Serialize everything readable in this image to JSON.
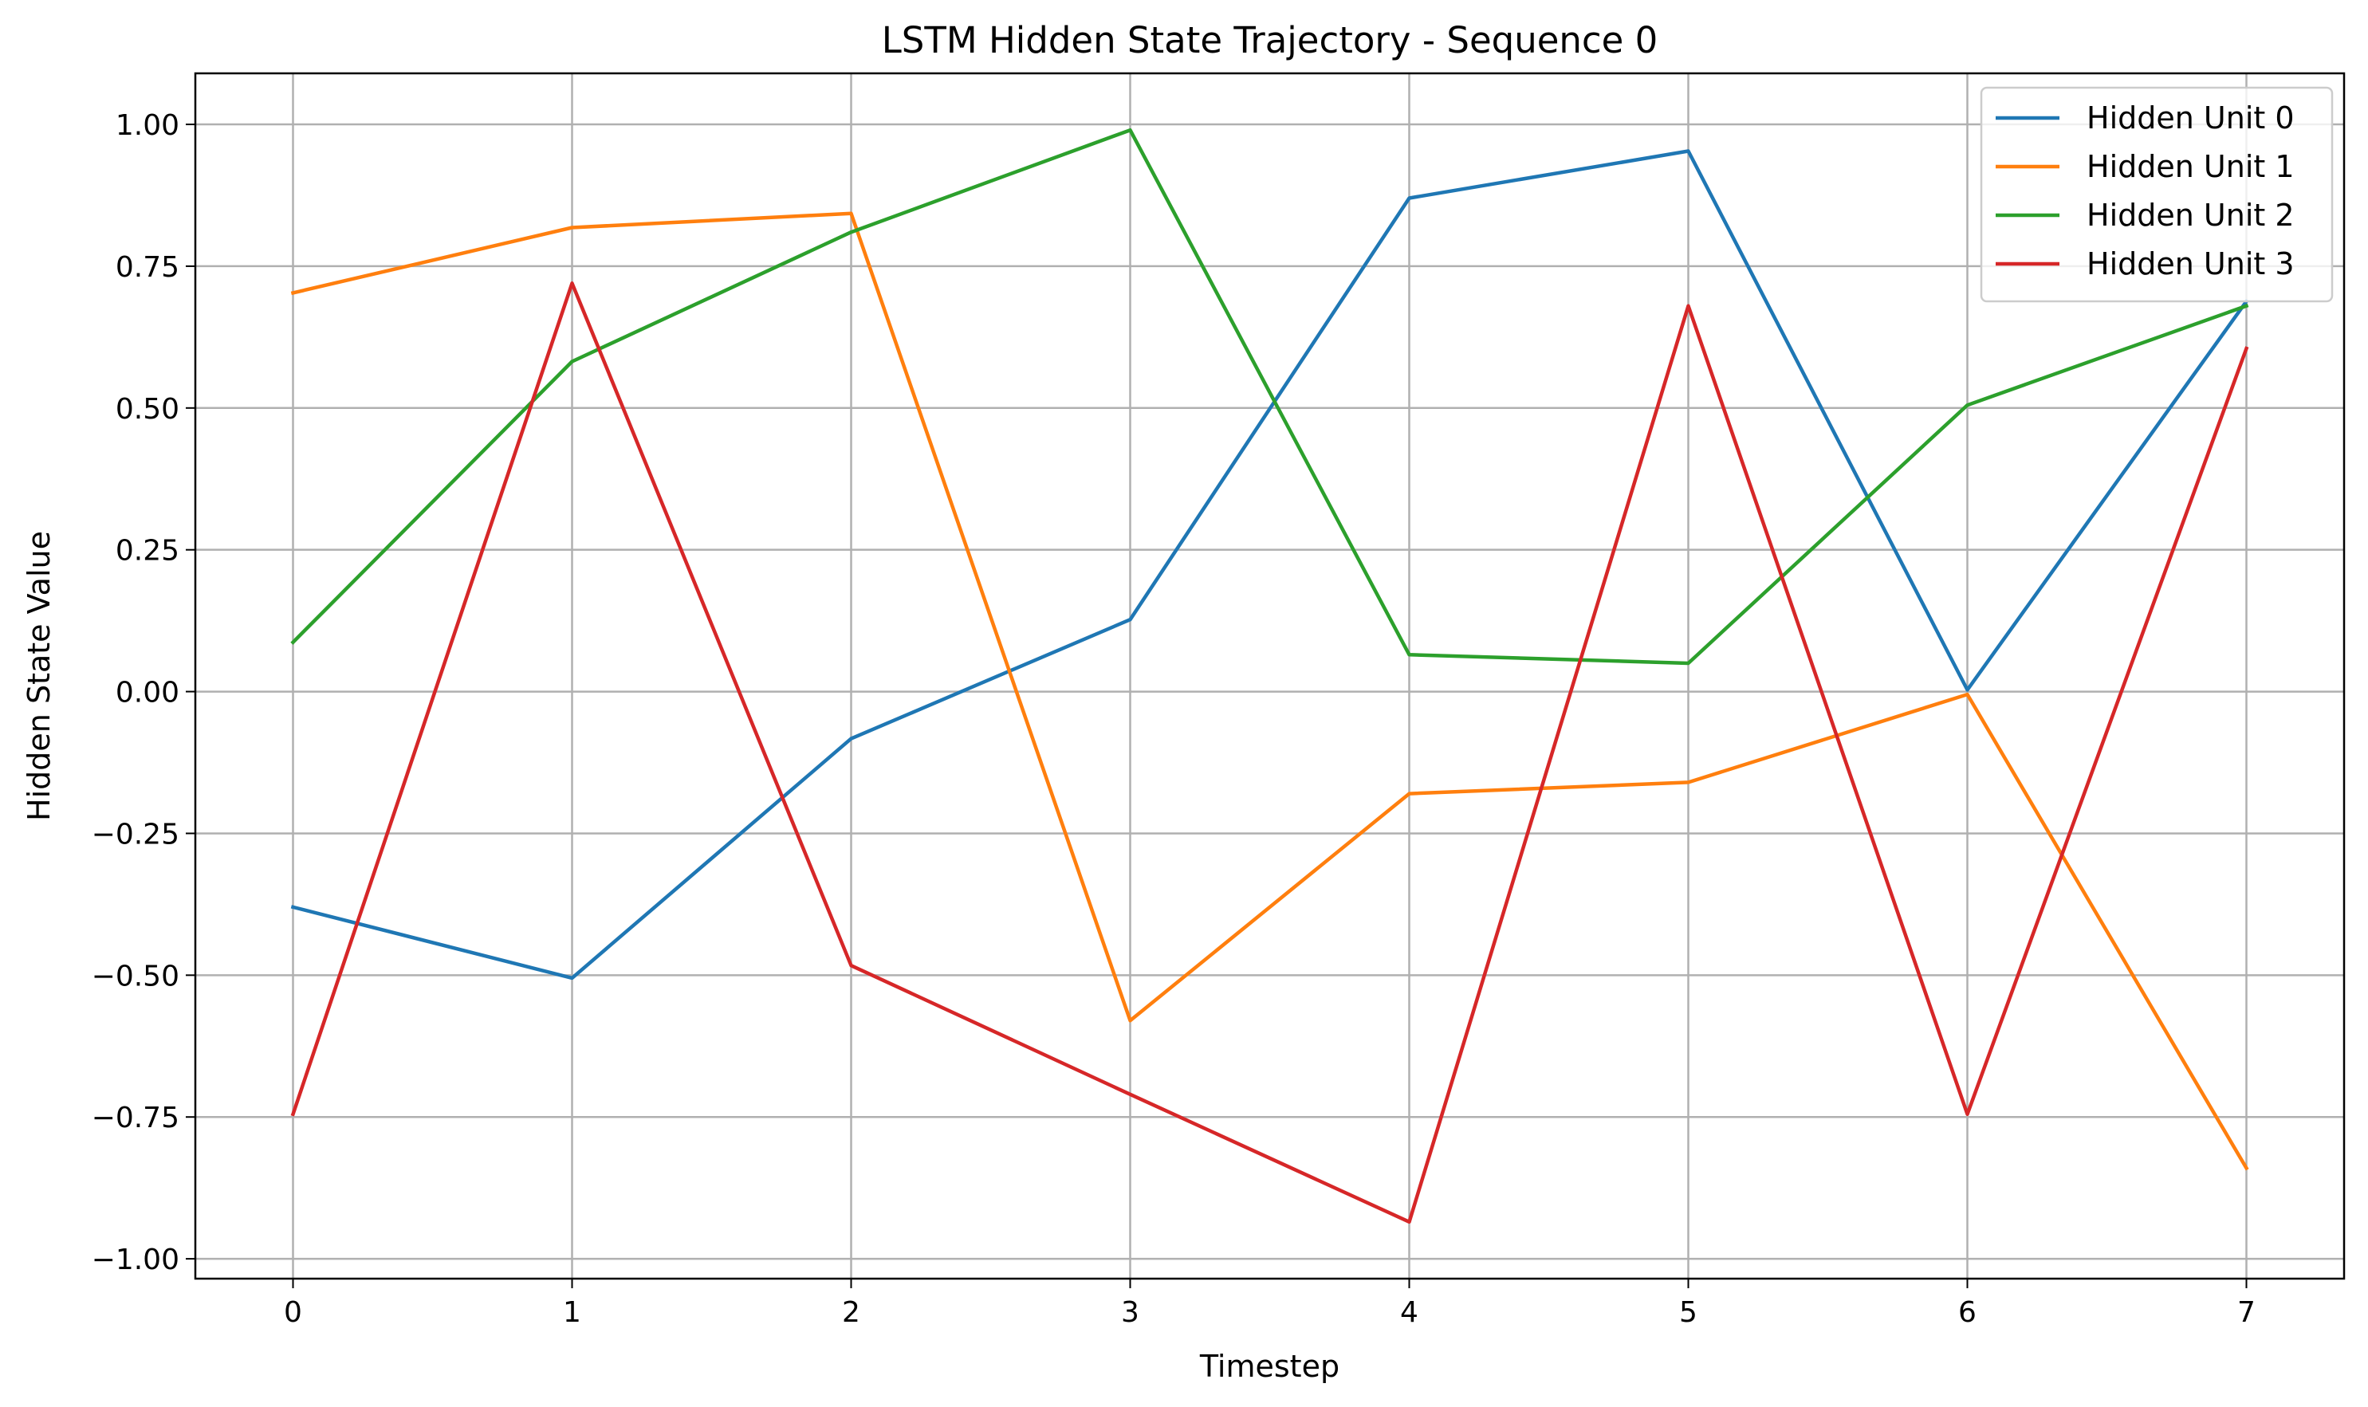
{
  "chart_data": {
    "type": "line",
    "title": "LSTM Hidden State Trajectory - Sequence 0",
    "xlabel": "Timestep",
    "ylabel": "Hidden State Value",
    "x": [
      0,
      1,
      2,
      3,
      4,
      5,
      6,
      7
    ],
    "xlim": [
      -0.35,
      7.35
    ],
    "ylim": [
      -1.035,
      1.09
    ],
    "xticks": [
      "0",
      "1",
      "2",
      "3",
      "4",
      "5",
      "6",
      "7"
    ],
    "yticks": [
      {
        "value": 1.0,
        "label": "1.00"
      },
      {
        "value": 0.75,
        "label": "0.75"
      },
      {
        "value": 0.5,
        "label": "0.50"
      },
      {
        "value": 0.25,
        "label": "0.25"
      },
      {
        "value": 0.0,
        "label": "0.00"
      },
      {
        "value": -0.25,
        "label": "−0.25"
      },
      {
        "value": -0.5,
        "label": "−0.50"
      },
      {
        "value": -0.75,
        "label": "−0.75"
      },
      {
        "value": -1.0,
        "label": "−1.00"
      }
    ],
    "grid": true,
    "legend_position": "top-right",
    "series": [
      {
        "name": "Hidden Unit 0",
        "color": "#1f77b4",
        "values": [
          -0.38,
          -0.505,
          -0.083,
          0.127,
          0.87,
          0.953,
          0.003,
          0.688
        ]
      },
      {
        "name": "Hidden Unit 1",
        "color": "#ff7f0e",
        "values": [
          0.703,
          0.818,
          0.843,
          -0.58,
          -0.18,
          -0.16,
          -0.005,
          -0.84
        ]
      },
      {
        "name": "Hidden Unit 2",
        "color": "#2ca02c",
        "values": [
          0.087,
          0.582,
          0.81,
          0.99,
          0.065,
          0.05,
          0.505,
          0.68
        ]
      },
      {
        "name": "Hidden Unit 3",
        "color": "#d62728",
        "values": [
          -0.745,
          0.72,
          -0.483,
          -0.71,
          -0.935,
          0.68,
          -0.745,
          0.605
        ]
      }
    ]
  }
}
